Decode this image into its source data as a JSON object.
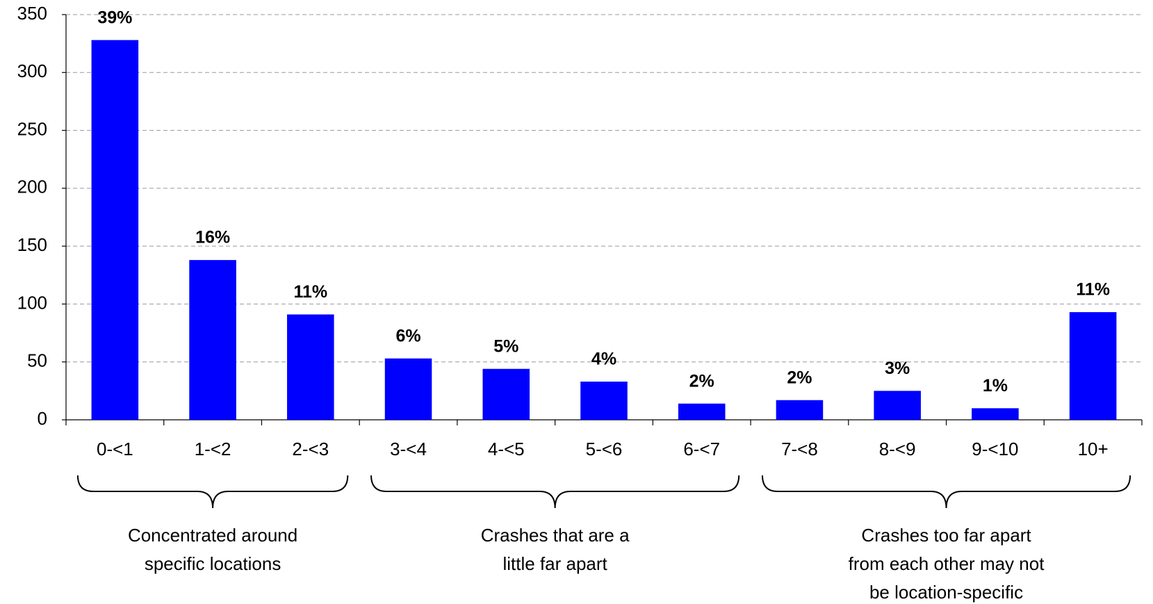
{
  "chart_data": {
    "type": "bar",
    "categories": [
      "0-<1",
      "1-<2",
      "2-<3",
      "3-<4",
      "4-<5",
      "5-<6",
      "6-<7",
      "7-<8",
      "8-<9",
      "9-<10",
      "10+"
    ],
    "values": [
      328,
      138,
      91,
      53,
      44,
      33,
      14,
      17,
      25,
      10,
      93
    ],
    "data_labels": [
      "39%",
      "16%",
      "11%",
      "6%",
      "5%",
      "4%",
      "2%",
      "2%",
      "3%",
      "1%",
      "11%"
    ],
    "color": "#0000ff",
    "ylim": [
      0,
      350
    ],
    "yticks": [
      0,
      50,
      100,
      150,
      200,
      250,
      300,
      350
    ],
    "grid": true,
    "groups": [
      {
        "categories": [
          "0-<1",
          "1-<2",
          "2-<3"
        ],
        "lines": [
          "Concentrated around",
          "specific locations"
        ]
      },
      {
        "categories": [
          "3-<4",
          "4-<5",
          "5-<6",
          "6-<7"
        ],
        "lines": [
          "Crashes that are a",
          "little far apart"
        ]
      },
      {
        "categories": [
          "7-<8",
          "8-<9",
          "9-<10",
          "10+"
        ],
        "lines": [
          "Crashes too far apart",
          "from each other may not",
          "be location-specific"
        ]
      }
    ]
  }
}
